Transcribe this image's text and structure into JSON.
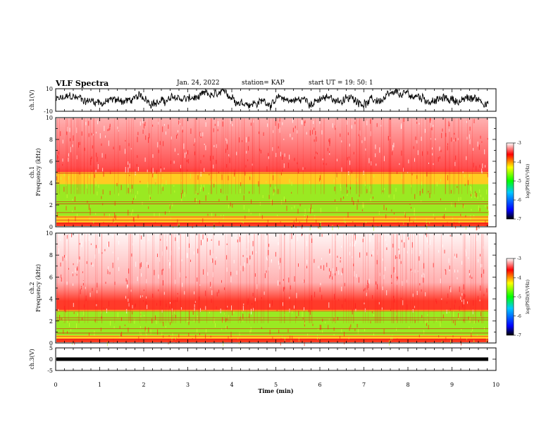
{
  "header": {
    "title": "VLF Spectra",
    "date": "Jan. 24, 2022",
    "station": "station= KAP",
    "start": "start UT = 19: 50: 1"
  },
  "chart_data": [
    {
      "type": "line",
      "panel": "ch1-waveform",
      "ylabel": "ch.1(V)",
      "ylim": [
        -10,
        10
      ],
      "yticks": [
        "10",
        "-10"
      ],
      "xlim": [
        0,
        10
      ]
    },
    {
      "type": "heatmap",
      "panel": "ch1-spectrogram",
      "ylabel": "ch.1 Frequency (kHz)",
      "ylim": [
        0,
        10
      ],
      "yticks": [
        "0",
        "2",
        "4",
        "6",
        "8",
        "10"
      ],
      "xlim": [
        0,
        10
      ],
      "colorbar": {
        "label": "log(PSD)(V²/Hz)",
        "ticks": [
          "-3",
          "-4",
          "-5",
          "-6",
          "-7"
        ],
        "range": [
          -7,
          -3
        ]
      }
    },
    {
      "type": "heatmap",
      "panel": "ch2-spectrogram",
      "ylabel": "ch.2 Frequency (kHz)",
      "ylim": [
        0,
        10
      ],
      "yticks": [
        "0",
        "2",
        "4",
        "6",
        "8",
        "10"
      ],
      "xlim": [
        0,
        10
      ],
      "colorbar": {
        "label": "log(PSD)(V²/Hz)",
        "ticks": [
          "-3",
          "-4",
          "-5",
          "-6",
          "-7"
        ],
        "range": [
          -7,
          -3
        ]
      }
    },
    {
      "type": "line",
      "panel": "ch3-waveform",
      "ylabel": "ch.3(V)",
      "ylim": [
        -5,
        5
      ],
      "yticks": [
        "5",
        "0",
        "-5"
      ],
      "xlim": [
        0,
        10
      ]
    }
  ],
  "xaxis": {
    "label": "Time (min)",
    "ticks": [
      "0",
      "1",
      "2",
      "3",
      "4",
      "5",
      "6",
      "7",
      "8",
      "9",
      "10"
    ]
  }
}
